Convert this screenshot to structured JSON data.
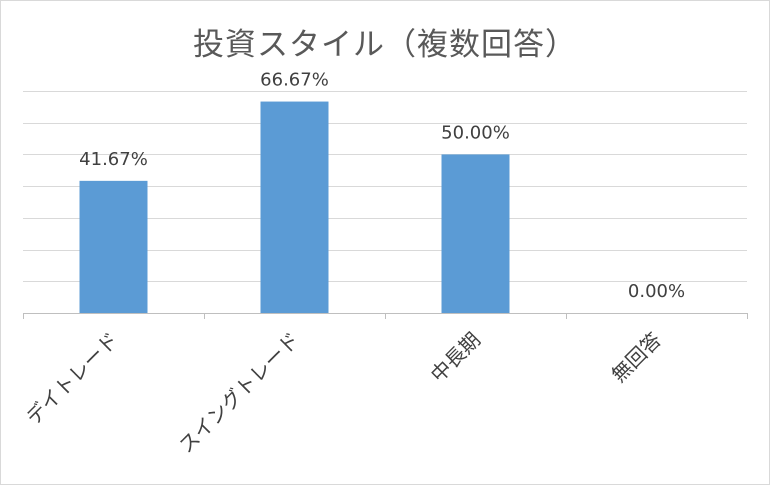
{
  "chart_data": {
    "type": "bar",
    "title": "投資スタイル（複数回答）",
    "categories": [
      "デイトレード",
      "スイングトレード",
      "中長期",
      "無回答"
    ],
    "values": [
      41.67,
      66.67,
      50.0,
      0.0
    ],
    "data_labels": [
      "41.67%",
      "66.67%",
      "50.00%",
      "0.00%"
    ],
    "ylim": [
      0,
      70
    ],
    "y_major_step": 10,
    "y_tick_labels_visible": false,
    "grid": true,
    "legend": "none",
    "xlabel": "",
    "ylabel": "",
    "bar_color": "#5b9bd5"
  }
}
